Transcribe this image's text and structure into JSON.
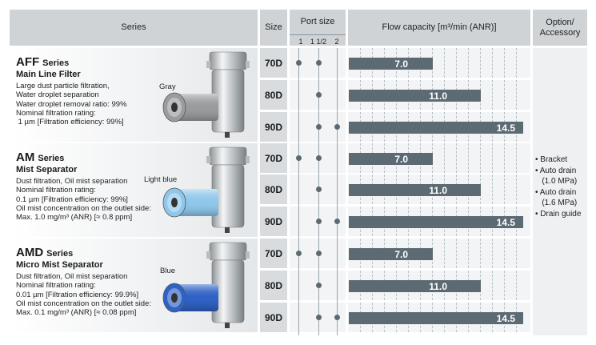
{
  "header": {
    "series": "Series",
    "size": "Size",
    "port_size": "Port size",
    "ports": [
      "1",
      "1 1/2",
      "2"
    ],
    "flow": "Flow capacity [m³/min (ANR)]",
    "option_line1": "Option/",
    "option_line2": "Accessory"
  },
  "groups": [
    {
      "name": "AFF",
      "series_word": "Series",
      "subtitle": "Main Line Filter",
      "desc": [
        "Large dust particle filtration,",
        "Water droplet separation",
        "Water droplet removal ratio: 99%",
        "Nominal filtration rating:",
        " 1 µm [Filtration efficiency: 99%]"
      ],
      "color_label": "Gray",
      "element_color": "#9a9c9e",
      "rows": [
        {
          "size": "70D",
          "ports": [
            true,
            true,
            false
          ],
          "flow": 7.0,
          "flow_label": "7.0"
        },
        {
          "size": "80D",
          "ports": [
            false,
            true,
            false
          ],
          "flow": 11.0,
          "flow_label": "11.0"
        },
        {
          "size": "90D",
          "ports": [
            false,
            true,
            true
          ],
          "flow": 14.5,
          "flow_label": "14.5"
        }
      ]
    },
    {
      "name": "AM",
      "series_word": "Series",
      "subtitle": "Mist Separator",
      "desc": [
        "Dust filtration, Oil mist separation",
        "Nominal filtration rating:",
        "0.1 µm [Filtration efficiency: 99%]",
        "Oil mist concentration on the outlet side:",
        "Max. 1.0 mg/m³ (ANR) [≈ 0.8 ppm]"
      ],
      "color_label": "Light blue",
      "element_color": "#8fc7ea",
      "rows": [
        {
          "size": "70D",
          "ports": [
            true,
            true,
            false
          ],
          "flow": 7.0,
          "flow_label": "7.0"
        },
        {
          "size": "80D",
          "ports": [
            false,
            true,
            false
          ],
          "flow": 11.0,
          "flow_label": "11.0"
        },
        {
          "size": "90D",
          "ports": [
            false,
            true,
            true
          ],
          "flow": 14.5,
          "flow_label": "14.5"
        }
      ]
    },
    {
      "name": "AMD",
      "series_word": "Series",
      "subtitle": "Micro Mist Separator",
      "desc": [
        "Dust filtration, Oil mist separation",
        "Nominal filtration rating:",
        "0.01 µm [Filtration efficiency: 99.9%]",
        "Oil mist concentration on the outlet side:",
        "Max. 0.1 mg/m³ (ANR) [≈ 0.08 ppm]"
      ],
      "color_label": "Blue",
      "element_color": "#2f62c4",
      "rows": [
        {
          "size": "70D",
          "ports": [
            true,
            true,
            false
          ],
          "flow": 7.0,
          "flow_label": "7.0"
        },
        {
          "size": "80D",
          "ports": [
            false,
            true,
            false
          ],
          "flow": 11.0,
          "flow_label": "11.0"
        },
        {
          "size": "90D",
          "ports": [
            false,
            true,
            true
          ],
          "flow": 14.5,
          "flow_label": "14.5"
        }
      ]
    }
  ],
  "flow_scale_max": 14.7,
  "options": [
    "• Bracket",
    "• Auto drain",
    "   (1.0 MPa)",
    "• Auto drain",
    "   (1.6 MPa)",
    "• Drain guide"
  ],
  "colors": {
    "header_bg": "#cfd3d6",
    "bar": "#5c6a73",
    "dot": "#5c6a73",
    "line": "#9aa4ab"
  }
}
